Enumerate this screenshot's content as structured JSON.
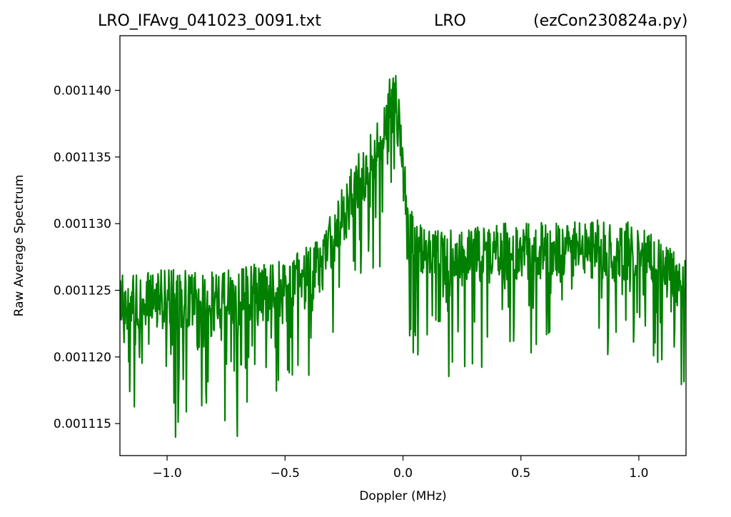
{
  "chart_data": {
    "type": "line",
    "title_left": "LRO_IFAvg_041023_0091.txt",
    "title_center": "LRO",
    "title_right": "(ezCon230824a.py)",
    "xlabel": "Doppler (MHz)",
    "ylabel": "Raw Average Spectrum",
    "xlim": [
      -1.2,
      1.2
    ],
    "ylim": [
      0.0011126,
      0.0011441
    ],
    "grid": false,
    "legend": "none",
    "x_ticks": [
      {
        "value": -1.0,
        "label": "−1.0"
      },
      {
        "value": -0.5,
        "label": "−0.5"
      },
      {
        "value": 0.0,
        "label": "0.0"
      },
      {
        "value": 0.5,
        "label": "0.5"
      },
      {
        "value": 1.0,
        "label": "1.0"
      }
    ],
    "y_ticks": [
      {
        "value": 0.001115,
        "label": "0.001115"
      },
      {
        "value": 0.00112,
        "label": "0.001120"
      },
      {
        "value": 0.001125,
        "label": "0.001125"
      },
      {
        "value": 0.00113,
        "label": "0.001130"
      },
      {
        "value": 0.001135,
        "label": "0.001135"
      },
      {
        "value": 0.00114,
        "label": "0.001140"
      }
    ],
    "series": [
      {
        "color": "#008000",
        "x": [
          -1.2,
          -1.1,
          -1.0,
          -0.9,
          -0.8,
          -0.7,
          -0.6,
          -0.5,
          -0.4,
          -0.35,
          -0.3,
          -0.25,
          -0.2,
          -0.15,
          -0.1,
          -0.07,
          -0.05,
          -0.03,
          -0.01,
          0.0,
          0.02,
          0.05,
          0.1,
          0.2,
          0.3,
          0.4,
          0.5,
          0.6,
          0.7,
          0.8,
          0.9,
          1.0,
          1.1,
          1.2
        ],
        "y": [
          0.001124,
          0.0011242,
          0.0011243,
          0.0011243,
          0.0011243,
          0.0011245,
          0.0011248,
          0.0011253,
          0.0011262,
          0.001127,
          0.001129,
          0.001131,
          0.0011328,
          0.001134,
          0.0011358,
          0.0011385,
          0.00114,
          0.001139,
          0.001137,
          0.001134,
          0.00113,
          0.0011282,
          0.0011278,
          0.0011275,
          0.0011276,
          0.0011278,
          0.001128,
          0.001128,
          0.0011281,
          0.0011281,
          0.001128,
          0.0011278,
          0.0011268,
          0.0011255
        ]
      }
    ]
  }
}
